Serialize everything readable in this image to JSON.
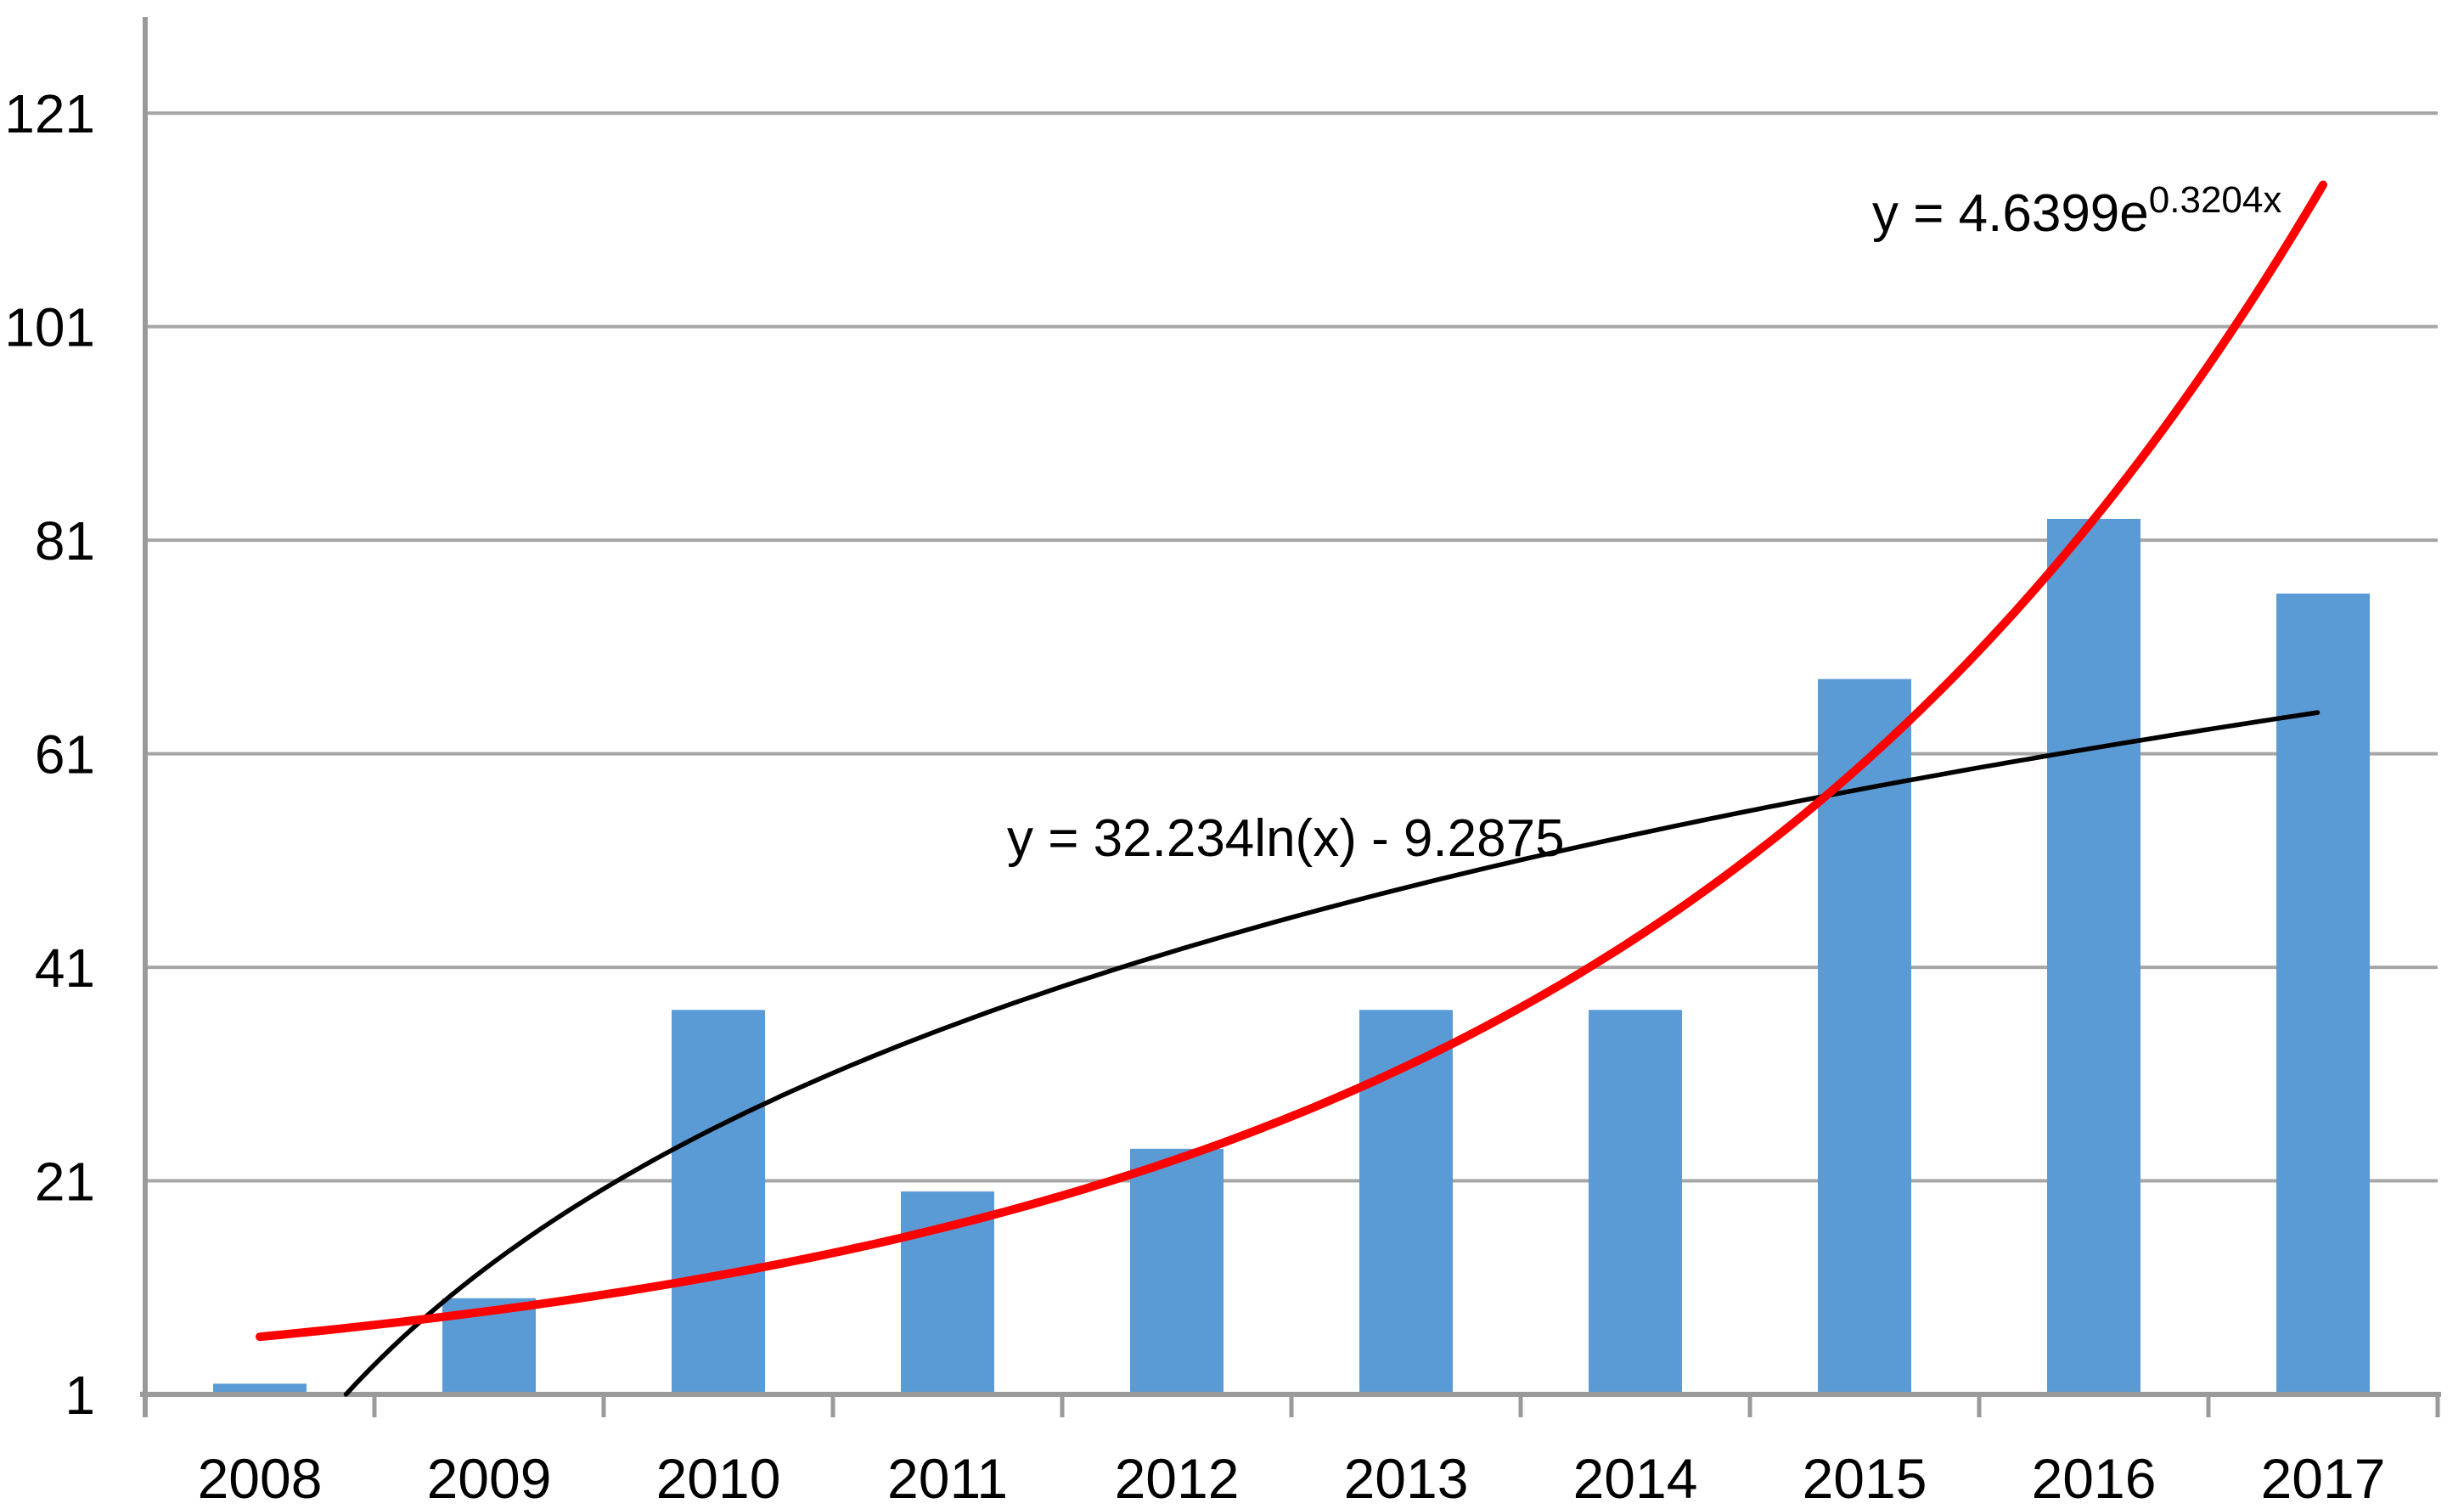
{
  "chart_data": {
    "type": "bar",
    "title": "",
    "xlabel": "",
    "ylabel": "",
    "categories": [
      "2008",
      "2009",
      "2010",
      "2011",
      "2012",
      "2013",
      "2014",
      "2015",
      "2016",
      "2017"
    ],
    "values": [
      2,
      10,
      37,
      20,
      24,
      37,
      37,
      68,
      83,
      76
    ],
    "y_ticks": [
      1,
      21,
      41,
      61,
      81,
      101,
      121
    ],
    "ylim": [
      1,
      130
    ],
    "grid": true,
    "legend": "none",
    "colors": {
      "bar": "#5B9BD5",
      "gridline": "#A6A6A6",
      "axis": "#9A9A9A",
      "label": "#000000",
      "exponential_line": "#FF0000",
      "logarithmic_line": "#000000"
    },
    "trendlines": [
      {
        "name": "exponential",
        "equation": "y = 4.6399e^0.3204x",
        "equation_base": "y = 4.6399e",
        "equation_exponent": "0.3204x",
        "a": 4.6399,
        "b": 0.3204,
        "color": "#FF0000",
        "x_range": [
          1,
          10
        ]
      },
      {
        "name": "logarithmic",
        "equation": "y = 32.234ln(x) - 9.2875",
        "a": 32.234,
        "b": -9.2875,
        "color": "#000000",
        "x_range": [
          1,
          10
        ]
      }
    ]
  }
}
